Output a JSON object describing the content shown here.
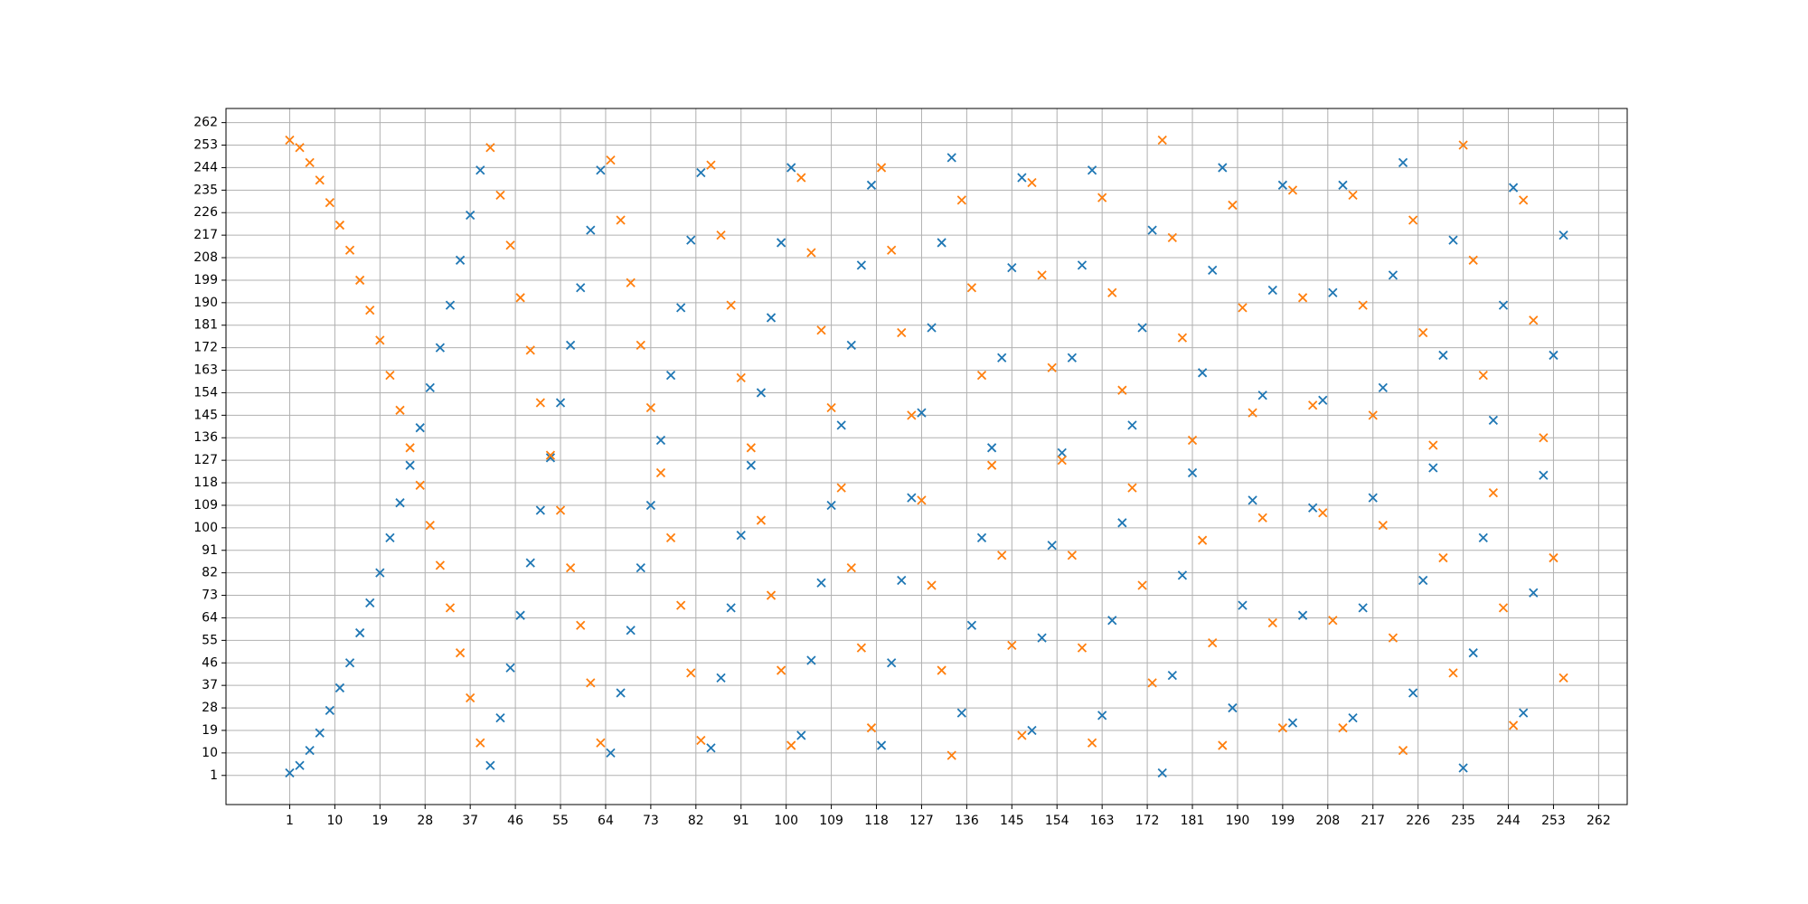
{
  "chart_data": {
    "type": "scatter",
    "marker": "x",
    "grid": true,
    "x": [
      1,
      3,
      5,
      7,
      9,
      11,
      13,
      15,
      17,
      19,
      21,
      23,
      25,
      27,
      29,
      31,
      33,
      35,
      37,
      39,
      41,
      43,
      45,
      47,
      49,
      51,
      53,
      55,
      57,
      59,
      61,
      63,
      65,
      67,
      69,
      71,
      73,
      75,
      77,
      79,
      81,
      83,
      85,
      87,
      89,
      91,
      93,
      95,
      97,
      99,
      101,
      103,
      105,
      107,
      109,
      111,
      113,
      115,
      117,
      119,
      121,
      123,
      125,
      127,
      129,
      131,
      133,
      135,
      137,
      139,
      141,
      143,
      145,
      147,
      149,
      151,
      153,
      155,
      157,
      159,
      161,
      163,
      165,
      167,
      169,
      171,
      173,
      175,
      177,
      179,
      181,
      183,
      185,
      187,
      189,
      191,
      193,
      195,
      197,
      199,
      201,
      203,
      205,
      207,
      209,
      211,
      213,
      215,
      217,
      219,
      221,
      223,
      225,
      227,
      229,
      231,
      233,
      235,
      237,
      239,
      241,
      243,
      245,
      247,
      249,
      251,
      253,
      255
    ],
    "series": [
      {
        "color": "#1f77b4",
        "values": [
          2,
          5,
          11,
          18,
          27,
          36,
          46,
          58,
          70,
          82,
          96,
          110,
          125,
          140,
          156,
          172,
          189,
          207,
          225,
          243,
          5,
          24,
          44,
          65,
          86,
          107,
          128,
          150,
          173,
          196,
          219,
          243,
          10,
          34,
          59,
          84,
          109,
          135,
          161,
          188,
          215,
          242,
          12,
          40,
          68,
          97,
          125,
          154,
          184,
          214,
          244,
          17,
          47,
          78,
          109,
          141,
          173,
          205,
          237,
          13,
          46,
          79,
          112,
          146,
          180,
          214,
          248,
          26,
          61,
          96,
          132,
          168,
          204,
          240,
          19,
          56,
          93,
          130,
          168,
          205,
          243,
          25,
          63,
          102,
          141,
          180,
          219,
          2,
          41,
          81,
          122,
          162,
          203,
          244,
          28,
          69,
          111,
          153,
          195,
          237,
          22,
          65,
          108,
          151,
          194,
          237,
          24,
          68,
          112,
          156,
          201,
          246,
          34,
          79,
          124,
          169,
          215,
          4,
          50,
          96,
          143,
          189,
          236,
          26,
          74,
          121,
          169,
          217
        ]
      },
      {
        "color": "#ff7f0e",
        "values": [
          255,
          252,
          246,
          239,
          230,
          221,
          211,
          199,
          187,
          175,
          161,
          147,
          132,
          117,
          101,
          85,
          68,
          50,
          32,
          14,
          252,
          233,
          213,
          192,
          171,
          150,
          129,
          107,
          84,
          61,
          38,
          14,
          247,
          223,
          198,
          173,
          148,
          122,
          96,
          69,
          42,
          15,
          245,
          217,
          189,
          160,
          132,
          103,
          73,
          43,
          13,
          240,
          210,
          179,
          148,
          116,
          84,
          52,
          20,
          244,
          211,
          178,
          145,
          111,
          77,
          43,
          9,
          231,
          196,
          161,
          125,
          89,
          53,
          17,
          238,
          201,
          164,
          127,
          89,
          52,
          14,
          232,
          194,
          155,
          116,
          77,
          38,
          255,
          216,
          176,
          135,
          95,
          54,
          13,
          229,
          188,
          146,
          104,
          62,
          20,
          235,
          192,
          149,
          106,
          63,
          20,
          233,
          189,
          145,
          101,
          56,
          11,
          223,
          178,
          133,
          88,
          42,
          253,
          207,
          161,
          114,
          68,
          21,
          231,
          183,
          136,
          88,
          40
        ]
      }
    ],
    "xlim": [
      -11.7,
      267.7
    ],
    "ylim": [
      -10.65,
      267.65
    ],
    "xticks": [
      1,
      10,
      19,
      28,
      37,
      46,
      55,
      64,
      73,
      82,
      91,
      100,
      109,
      118,
      127,
      136,
      145,
      154,
      163,
      172,
      181,
      190,
      199,
      208,
      217,
      226,
      235,
      244,
      253,
      262
    ],
    "yticks": [
      1,
      10,
      19,
      28,
      37,
      46,
      55,
      64,
      73,
      82,
      91,
      100,
      109,
      118,
      127,
      136,
      145,
      154,
      163,
      172,
      181,
      190,
      199,
      208,
      217,
      226,
      235,
      244,
      253,
      262
    ]
  }
}
